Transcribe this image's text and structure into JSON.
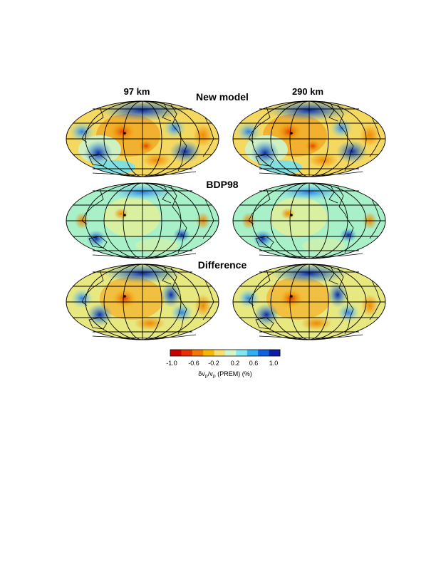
{
  "figure": {
    "column_labels": [
      "97 km",
      "290 km"
    ],
    "row_labels": [
      "New model",
      "BDP98",
      "Difference"
    ],
    "maps": [
      {
        "row": "New model",
        "column": "97 km"
      },
      {
        "row": "New model",
        "column": "290 km"
      },
      {
        "row": "BDP98",
        "column": "97 km"
      },
      {
        "row": "BDP98",
        "column": "290 km"
      },
      {
        "row": "Difference",
        "column": "97 km"
      },
      {
        "row": "Difference",
        "column": "290 km"
      }
    ],
    "projection": "Hammer-Aitoff (global)",
    "colorbar": {
      "ticks": [
        "-1.0",
        "-0.6",
        "-0.2",
        "0.2",
        "0.6",
        "1.0"
      ],
      "range": [
        -1.0,
        1.0
      ],
      "label_main": "δv",
      "label_sub1": "P",
      "label_mid": "/v",
      "label_sub2": "P",
      "label_tail": "(PREM) (%)",
      "colors": [
        "#c80000",
        "#e53000",
        "#f07a00",
        "#f5b800",
        "#f5e070",
        "#cff5c8",
        "#80e8f0",
        "#30b0f0",
        "#1060e0",
        "#0a20a0"
      ]
    }
  }
}
